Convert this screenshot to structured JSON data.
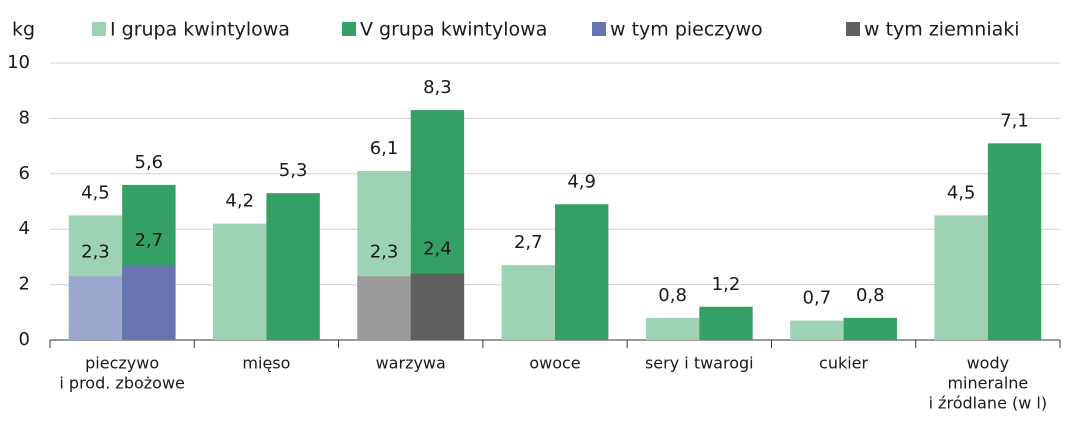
{
  "chart_data": {
    "type": "bar",
    "y_axis_label": "kg",
    "categories": [
      [
        "pieczywo",
        "i prod. zbożowe"
      ],
      [
        "mięso"
      ],
      [
        "warzywa"
      ],
      [
        "owoce"
      ],
      [
        "sery i twarogi"
      ],
      [
        "cukier"
      ],
      [
        "wody",
        "mineralne",
        "i źródlane (w l)"
      ]
    ],
    "series": [
      {
        "name": "I grupa kwintylowa",
        "color": "#9dd3b4",
        "values": [
          4.5,
          4.2,
          6.1,
          2.7,
          0.8,
          0.7,
          4.5
        ],
        "value_labels": [
          "4,5",
          "4,2",
          "6,1",
          "2,7",
          "0,8",
          "0,7",
          "4,5"
        ]
      },
      {
        "name": "V grupa kwintylowa",
        "color": "#34a066",
        "values": [
          5.6,
          5.3,
          8.3,
          4.9,
          1.2,
          0.8,
          7.1
        ],
        "value_labels": [
          "5,6",
          "5,3",
          "8,3",
          "4,9",
          "1,2",
          "0,8",
          "7,1"
        ]
      },
      {
        "name": "w tym pieczywo",
        "color": "#6674b0",
        "colors": [
          "#9ba7cd",
          "#6674b0"
        ],
        "values": [
          [
            2.3,
            2.7
          ],
          null,
          null,
          null,
          null,
          null,
          null
        ],
        "value_labels": [
          [
            "2,3",
            "2,7"
          ],
          null,
          null,
          null,
          null,
          null,
          null
        ]
      },
      {
        "name": "w tym ziemniaki",
        "color": "#606060",
        "colors": [
          "#9a9a9a",
          "#606060"
        ],
        "values": [
          null,
          null,
          [
            2.3,
            2.4
          ],
          null,
          null,
          null,
          null
        ],
        "value_labels": [
          null,
          null,
          [
            "2,3",
            "2,4"
          ],
          null,
          null,
          null,
          null
        ]
      }
    ],
    "ylim": [
      0,
      10
    ],
    "yticks": [
      0,
      2,
      4,
      6,
      8,
      10
    ],
    "grid": true
  }
}
